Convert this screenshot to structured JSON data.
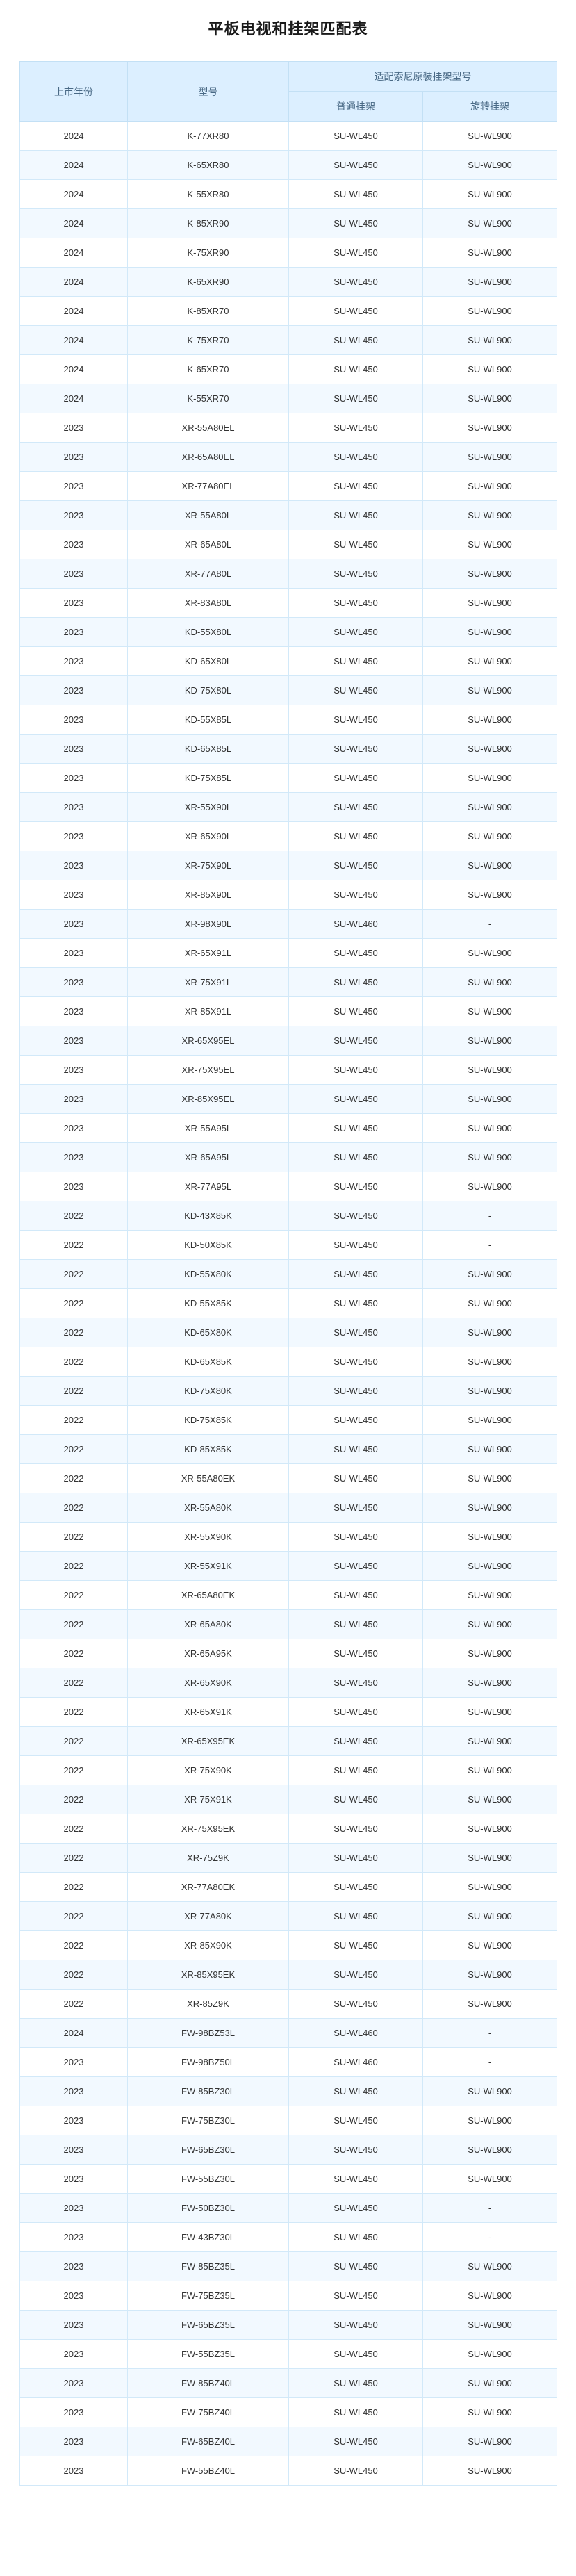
{
  "title": "平板电视和挂架匹配表",
  "headers": {
    "year": "上市年份",
    "model": "型号",
    "group": "适配索尼原装挂架型号",
    "normal": "普通挂架",
    "rotate": "旋转挂架"
  },
  "rows": [
    [
      "2024",
      "K-77XR80",
      "SU-WL450",
      "SU-WL900"
    ],
    [
      "2024",
      "K-65XR80",
      "SU-WL450",
      "SU-WL900"
    ],
    [
      "2024",
      "K-55XR80",
      "SU-WL450",
      "SU-WL900"
    ],
    [
      "2024",
      "K-85XR90",
      "SU-WL450",
      "SU-WL900"
    ],
    [
      "2024",
      "K-75XR90",
      "SU-WL450",
      "SU-WL900"
    ],
    [
      "2024",
      "K-65XR90",
      "SU-WL450",
      "SU-WL900"
    ],
    [
      "2024",
      "K-85XR70",
      "SU-WL450",
      "SU-WL900"
    ],
    [
      "2024",
      "K-75XR70",
      "SU-WL450",
      "SU-WL900"
    ],
    [
      "2024",
      "K-65XR70",
      "SU-WL450",
      "SU-WL900"
    ],
    [
      "2024",
      "K-55XR70",
      "SU-WL450",
      "SU-WL900"
    ],
    [
      "2023",
      "XR-55A80EL",
      "SU-WL450",
      "SU-WL900"
    ],
    [
      "2023",
      "XR-65A80EL",
      "SU-WL450",
      "SU-WL900"
    ],
    [
      "2023",
      "XR-77A80EL",
      "SU-WL450",
      "SU-WL900"
    ],
    [
      "2023",
      "XR-55A80L",
      "SU-WL450",
      "SU-WL900"
    ],
    [
      "2023",
      "XR-65A80L",
      "SU-WL450",
      "SU-WL900"
    ],
    [
      "2023",
      "XR-77A80L",
      "SU-WL450",
      "SU-WL900"
    ],
    [
      "2023",
      "XR-83A80L",
      "SU-WL450",
      "SU-WL900"
    ],
    [
      "2023",
      "KD-55X80L",
      "SU-WL450",
      "SU-WL900"
    ],
    [
      "2023",
      "KD-65X80L",
      "SU-WL450",
      "SU-WL900"
    ],
    [
      "2023",
      "KD-75X80L",
      "SU-WL450",
      "SU-WL900"
    ],
    [
      "2023",
      "KD-55X85L",
      "SU-WL450",
      "SU-WL900"
    ],
    [
      "2023",
      "KD-65X85L",
      "SU-WL450",
      "SU-WL900"
    ],
    [
      "2023",
      "KD-75X85L",
      "SU-WL450",
      "SU-WL900"
    ],
    [
      "2023",
      "XR-55X90L",
      "SU-WL450",
      "SU-WL900"
    ],
    [
      "2023",
      "XR-65X90L",
      "SU-WL450",
      "SU-WL900"
    ],
    [
      "2023",
      "XR-75X90L",
      "SU-WL450",
      "SU-WL900"
    ],
    [
      "2023",
      "XR-85X90L",
      "SU-WL450",
      "SU-WL900"
    ],
    [
      "2023",
      "XR-98X90L",
      "SU-WL460",
      "-"
    ],
    [
      "2023",
      "XR-65X91L",
      "SU-WL450",
      "SU-WL900"
    ],
    [
      "2023",
      "XR-75X91L",
      "SU-WL450",
      "SU-WL900"
    ],
    [
      "2023",
      "XR-85X91L",
      "SU-WL450",
      "SU-WL900"
    ],
    [
      "2023",
      "XR-65X95EL",
      "SU-WL450",
      "SU-WL900"
    ],
    [
      "2023",
      "XR-75X95EL",
      "SU-WL450",
      "SU-WL900"
    ],
    [
      "2023",
      "XR-85X95EL",
      "SU-WL450",
      "SU-WL900"
    ],
    [
      "2023",
      "XR-55A95L",
      "SU-WL450",
      "SU-WL900"
    ],
    [
      "2023",
      "XR-65A95L",
      "SU-WL450",
      "SU-WL900"
    ],
    [
      "2023",
      "XR-77A95L",
      "SU-WL450",
      "SU-WL900"
    ],
    [
      "2022",
      "KD-43X85K",
      "SU-WL450",
      "-"
    ],
    [
      "2022",
      "KD-50X85K",
      "SU-WL450",
      "-"
    ],
    [
      "2022",
      "KD-55X80K",
      "SU-WL450",
      "SU-WL900"
    ],
    [
      "2022",
      "KD-55X85K",
      "SU-WL450",
      "SU-WL900"
    ],
    [
      "2022",
      "KD-65X80K",
      "SU-WL450",
      "SU-WL900"
    ],
    [
      "2022",
      "KD-65X85K",
      "SU-WL450",
      "SU-WL900"
    ],
    [
      "2022",
      "KD-75X80K",
      "SU-WL450",
      "SU-WL900"
    ],
    [
      "2022",
      "KD-75X85K",
      "SU-WL450",
      "SU-WL900"
    ],
    [
      "2022",
      "KD-85X85K",
      "SU-WL450",
      "SU-WL900"
    ],
    [
      "2022",
      "XR-55A80EK",
      "SU-WL450",
      "SU-WL900"
    ],
    [
      "2022",
      "XR-55A80K",
      "SU-WL450",
      "SU-WL900"
    ],
    [
      "2022",
      "XR-55X90K",
      "SU-WL450",
      "SU-WL900"
    ],
    [
      "2022",
      "XR-55X91K",
      "SU-WL450",
      "SU-WL900"
    ],
    [
      "2022",
      "XR-65A80EK",
      "SU-WL450",
      "SU-WL900"
    ],
    [
      "2022",
      "XR-65A80K",
      "SU-WL450",
      "SU-WL900"
    ],
    [
      "2022",
      "XR-65A95K",
      "SU-WL450",
      "SU-WL900"
    ],
    [
      "2022",
      "XR-65X90K",
      "SU-WL450",
      "SU-WL900"
    ],
    [
      "2022",
      "XR-65X91K",
      "SU-WL450",
      "SU-WL900"
    ],
    [
      "2022",
      "XR-65X95EK",
      "SU-WL450",
      "SU-WL900"
    ],
    [
      "2022",
      "XR-75X90K",
      "SU-WL450",
      "SU-WL900"
    ],
    [
      "2022",
      "XR-75X91K",
      "SU-WL450",
      "SU-WL900"
    ],
    [
      "2022",
      "XR-75X95EK",
      "SU-WL450",
      "SU-WL900"
    ],
    [
      "2022",
      "XR-75Z9K",
      "SU-WL450",
      "SU-WL900"
    ],
    [
      "2022",
      "XR-77A80EK",
      "SU-WL450",
      "SU-WL900"
    ],
    [
      "2022",
      "XR-77A80K",
      "SU-WL450",
      "SU-WL900"
    ],
    [
      "2022",
      "XR-85X90K",
      "SU-WL450",
      "SU-WL900"
    ],
    [
      "2022",
      "XR-85X95EK",
      "SU-WL450",
      "SU-WL900"
    ],
    [
      "2022",
      "XR-85Z9K",
      "SU-WL450",
      "SU-WL900"
    ],
    [
      "2024",
      "FW-98BZ53L",
      "SU-WL460",
      "-"
    ],
    [
      "2023",
      "FW-98BZ50L",
      "SU-WL460",
      "-"
    ],
    [
      "2023",
      "FW-85BZ30L",
      "SU-WL450",
      "SU-WL900"
    ],
    [
      "2023",
      "FW-75BZ30L",
      "SU-WL450",
      "SU-WL900"
    ],
    [
      "2023",
      "FW-65BZ30L",
      "SU-WL450",
      "SU-WL900"
    ],
    [
      "2023",
      "FW-55BZ30L",
      "SU-WL450",
      "SU-WL900"
    ],
    [
      "2023",
      "FW-50BZ30L",
      "SU-WL450",
      "-"
    ],
    [
      "2023",
      "FW-43BZ30L",
      "SU-WL450",
      "-"
    ],
    [
      "2023",
      "FW-85BZ35L",
      "SU-WL450",
      "SU-WL900"
    ],
    [
      "2023",
      "FW-75BZ35L",
      "SU-WL450",
      "SU-WL900"
    ],
    [
      "2023",
      "FW-65BZ35L",
      "SU-WL450",
      "SU-WL900"
    ],
    [
      "2023",
      "FW-55BZ35L",
      "SU-WL450",
      "SU-WL900"
    ],
    [
      "2023",
      "FW-85BZ40L",
      "SU-WL450",
      "SU-WL900"
    ],
    [
      "2023",
      "FW-75BZ40L",
      "SU-WL450",
      "SU-WL900"
    ],
    [
      "2023",
      "FW-65BZ40L",
      "SU-WL450",
      "SU-WL900"
    ],
    [
      "2023",
      "FW-55BZ40L",
      "SU-WL450",
      "SU-WL900"
    ]
  ]
}
